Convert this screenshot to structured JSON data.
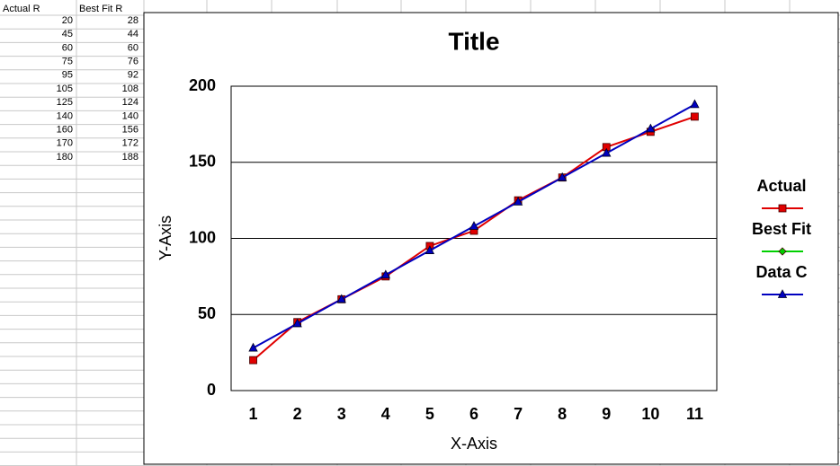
{
  "sheet": {
    "headers": [
      "Actual R",
      "Best Fit R"
    ],
    "rows": [
      [
        20,
        28
      ],
      [
        45,
        44
      ],
      [
        60,
        60
      ],
      [
        75,
        76
      ],
      [
        95,
        92
      ],
      [
        105,
        108
      ],
      [
        125,
        124
      ],
      [
        140,
        140
      ],
      [
        160,
        156
      ],
      [
        170,
        172
      ],
      [
        180,
        188
      ]
    ]
  },
  "chart_data": {
    "type": "line",
    "title": "Title",
    "x_label": "X-Axis",
    "y_label": "Y-Axis",
    "categories": [
      1,
      2,
      3,
      4,
      5,
      6,
      7,
      8,
      9,
      10,
      11
    ],
    "series": [
      {
        "name": "Actual",
        "color": "#e00000",
        "marker": "square",
        "values": [
          20,
          45,
          60,
          75,
          95,
          105,
          125,
          140,
          160,
          170,
          180
        ]
      },
      {
        "name": "Best Fit",
        "color": "#00d000",
        "marker": "diamond",
        "values": [
          null,
          null,
          null,
          null,
          null,
          null,
          null,
          null,
          null,
          null,
          null
        ]
      },
      {
        "name": "Data C",
        "color": "#0000c0",
        "marker": "triangle",
        "values": [
          28,
          44,
          60,
          76,
          92,
          108,
          124,
          140,
          156,
          172,
          188
        ]
      }
    ],
    "ylim": [
      0,
      200
    ],
    "yticks": [
      0,
      50,
      100,
      150,
      200
    ],
    "grid": true,
    "legend": "right"
  }
}
